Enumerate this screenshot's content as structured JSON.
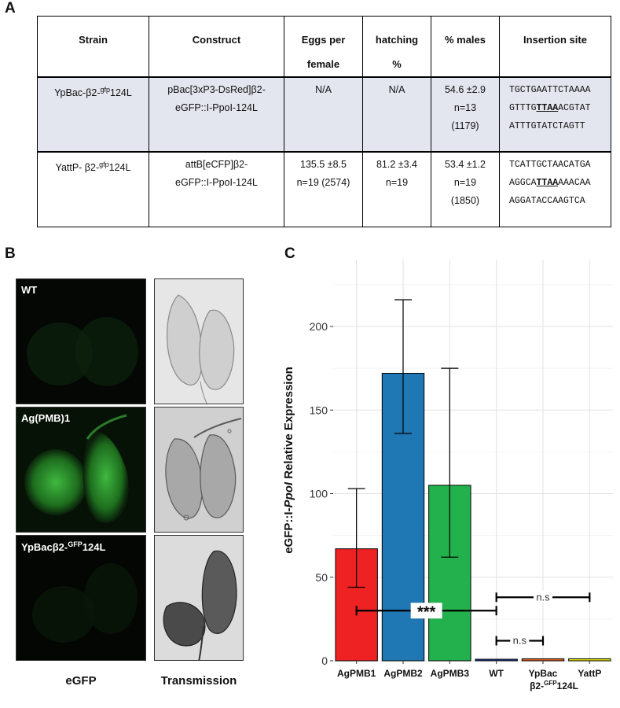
{
  "panels": {
    "a": "A",
    "b": "B",
    "c": "C"
  },
  "table": {
    "headers": {
      "strain": "Strain",
      "construct": "Construct",
      "eggs_1": "Eggs per",
      "eggs_2": "female",
      "hatch_1": "hatching",
      "hatch_2": "%",
      "males": "% males",
      "site": "Insertion site"
    },
    "rows": [
      {
        "strain_a": "YpBac-β2-",
        "strain_sup": "gfp",
        "strain_b": "124L",
        "construct_1": "pBac[3xP3-DsRed]β2-",
        "construct_2": "eGFP::I-PpoI-124L",
        "eggs_1": "N/A",
        "eggs_2": "",
        "hatch_1": "N/A",
        "hatch_2": "",
        "males_1": "54.6 ±2.9",
        "males_2": "n=13",
        "males_3": "(1179)",
        "seq_1": "TGCTGAATTCTAAAA",
        "seq_2a": "GTTTG",
        "seq_2b": "TTAA",
        "seq_2c": "ACGTAT",
        "seq_3": "ATTTGTATCTAGTT"
      },
      {
        "strain_a": "YattP- β2-",
        "strain_sup": "gfp",
        "strain_b": "124L",
        "construct_1": "attB[eCFP]β2-",
        "construct_2": "eGFP::I-PpoI-124L",
        "eggs_1": "135.5 ±8.5",
        "eggs_2": "n=19 (2574)",
        "hatch_1": "81.2 ±3.4",
        "hatch_2": "n=19",
        "males_1": "53.4 ±1.2",
        "males_2": "n=19",
        "males_3": "(1850)",
        "seq_1": "TCATTGCTAACATGA",
        "seq_2a": "AGGCA",
        "seq_2b": "TTAA",
        "seq_2c": "AAACAA",
        "seq_3": "AGGATACCAAGTCA"
      }
    ]
  },
  "panel_b": {
    "labels": {
      "wt": "WT",
      "agpmb": "Ag(PMB)1",
      "ypbac_a": "YpBacβ2-",
      "ypbac_sup": "GFP",
      "ypbac_b": "124L"
    },
    "columns": {
      "egfp": "eGFP",
      "trans": "Transmission"
    },
    "colors": {
      "fluor_bg": "#050905",
      "green_glow": "#2fa02f",
      "bw_bg": "#d8d8d8"
    }
  },
  "chart_data": {
    "type": "bar",
    "categories": [
      "AgPMB1",
      "AgPMB2",
      "AgPMB3",
      "WT",
      "YpBac",
      "YattP"
    ],
    "category_second_line": [
      "",
      "",
      "",
      "",
      "β2-GFP124L",
      ""
    ],
    "values": [
      67,
      172,
      105,
      0.6,
      1.2,
      1.2
    ],
    "error_low": [
      44,
      136,
      62,
      0.3,
      0.8,
      0.8
    ],
    "error_high": [
      103,
      216,
      175,
      0.9,
      1.6,
      1.6
    ],
    "colors": [
      "#ee2222",
      "#1f77b4",
      "#22b14c",
      "#1f3f99",
      "#e8651f",
      "#e8e800"
    ],
    "ylabel_a": "eGFP::I-",
    "ylabel_b": "PpoI",
    "ylabel_c": " Relative Expression",
    "ylim": [
      0,
      240
    ],
    "yticks": [
      "0",
      "50",
      "100",
      "150",
      "200"
    ],
    "grid": true,
    "annotations": [
      {
        "text": "***",
        "from": "AgPMB1",
        "to": "WT",
        "y": 30
      },
      {
        "text": "n.s",
        "from": "WT",
        "to": "YpBac",
        "y": 12
      },
      {
        "text": "n.s",
        "from": "WT",
        "to": "YattP",
        "y": 38
      }
    ]
  }
}
